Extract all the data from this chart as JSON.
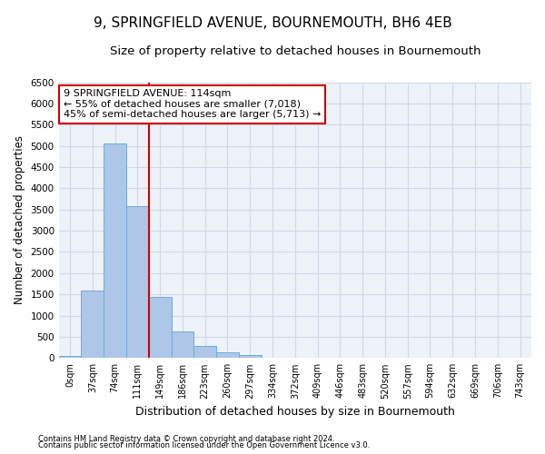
{
  "title": "9, SPRINGFIELD AVENUE, BOURNEMOUTH, BH6 4EB",
  "subtitle": "Size of property relative to detached houses in Bournemouth",
  "xlabel": "Distribution of detached houses by size in Bournemouth",
  "ylabel": "Number of detached properties",
  "footer1": "Contains HM Land Registry data © Crown copyright and database right 2024.",
  "footer2": "Contains public sector information licensed under the Open Government Licence v3.0.",
  "categories": [
    "0sqm",
    "37sqm",
    "74sqm",
    "111sqm",
    "149sqm",
    "186sqm",
    "223sqm",
    "260sqm",
    "297sqm",
    "334sqm",
    "372sqm",
    "409sqm",
    "446sqm",
    "483sqm",
    "520sqm",
    "557sqm",
    "594sqm",
    "632sqm",
    "669sqm",
    "706sqm",
    "743sqm"
  ],
  "bar_values": [
    50,
    1600,
    5050,
    3570,
    1430,
    620,
    280,
    140,
    80,
    0,
    0,
    0,
    0,
    0,
    0,
    0,
    0,
    0,
    0,
    0,
    0
  ],
  "bar_color": "#aec6e8",
  "bar_edge_color": "#6aaed6",
  "vline_color": "#cc0000",
  "ylim": [
    0,
    6500
  ],
  "yticks": [
    0,
    500,
    1000,
    1500,
    2000,
    2500,
    3000,
    3500,
    4000,
    4500,
    5000,
    5500,
    6000,
    6500
  ],
  "annotation_title": "9 SPRINGFIELD AVENUE: 114sqm",
  "annotation_line1": "← 55% of detached houses are smaller (7,018)",
  "annotation_line2": "45% of semi-detached houses are larger (5,713) →",
  "annotation_box_color": "#ffffff",
  "annotation_box_edge": "#cc0000",
  "grid_color": "#d0d8e8",
  "bg_color": "#eef2f9",
  "title_fontsize": 11,
  "subtitle_fontsize": 9.5,
  "annotation_fontsize": 8,
  "ylabel_fontsize": 8.5,
  "xlabel_fontsize": 9,
  "footer_fontsize": 6
}
